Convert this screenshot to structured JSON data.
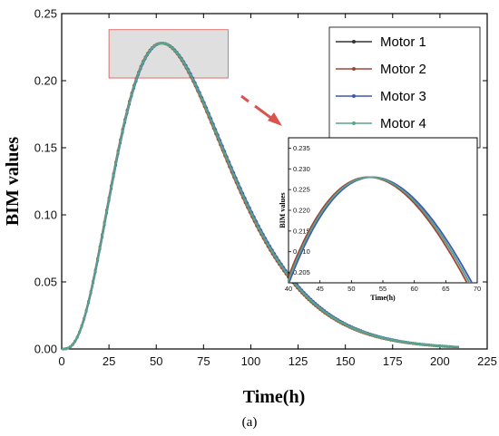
{
  "chart_data": [
    {
      "type": "line",
      "xlabel": "Time(h)",
      "ylabel": "BIM values",
      "xlim": [
        0,
        225
      ],
      "ylim": [
        0,
        0.25
      ],
      "x_ticks": [
        "0",
        "25",
        "50",
        "75",
        "100",
        "125",
        "150",
        "175",
        "200",
        "225"
      ],
      "y_ticks": [
        "0.00",
        "0.05",
        "0.10",
        "0.15",
        "0.20",
        "0.25"
      ],
      "legend_position": "top-right",
      "series": [
        {
          "name": "Motor 1",
          "color": "#333333",
          "peak_x": 53.0,
          "peak_y": 0.228
        },
        {
          "name": "Motor 2",
          "color": "#a0443a",
          "peak_x": 52.7,
          "peak_y": 0.228
        },
        {
          "name": "Motor 3",
          "color": "#3f57b8",
          "peak_x": 53.3,
          "peak_y": 0.228
        },
        {
          "name": "Motor 4",
          "color": "#5aa585",
          "peak_x": 53.0,
          "peak_y": 0.228
        }
      ],
      "highlight_region": {
        "x": [
          25,
          88
        ],
        "y": [
          0.202,
          0.238
        ]
      }
    },
    {
      "type": "line",
      "role": "inset-zoom",
      "xlabel": "Time(h)",
      "ylabel": "BIM values",
      "xlim": [
        40,
        70
      ],
      "ylim": [
        0.2025,
        0.2375
      ],
      "x_ticks": [
        "40",
        "45",
        "50",
        "55",
        "60",
        "65",
        "70"
      ],
      "y_ticks": [
        "0.205",
        "0.210",
        "0.215",
        "0.220",
        "0.225",
        "0.230",
        "0.235"
      ]
    }
  ],
  "caption": "(a)",
  "colors": {
    "highlight_fill": "#d9d9d9",
    "highlight_stroke": "#d9534f",
    "arrow": "#d9534f"
  }
}
